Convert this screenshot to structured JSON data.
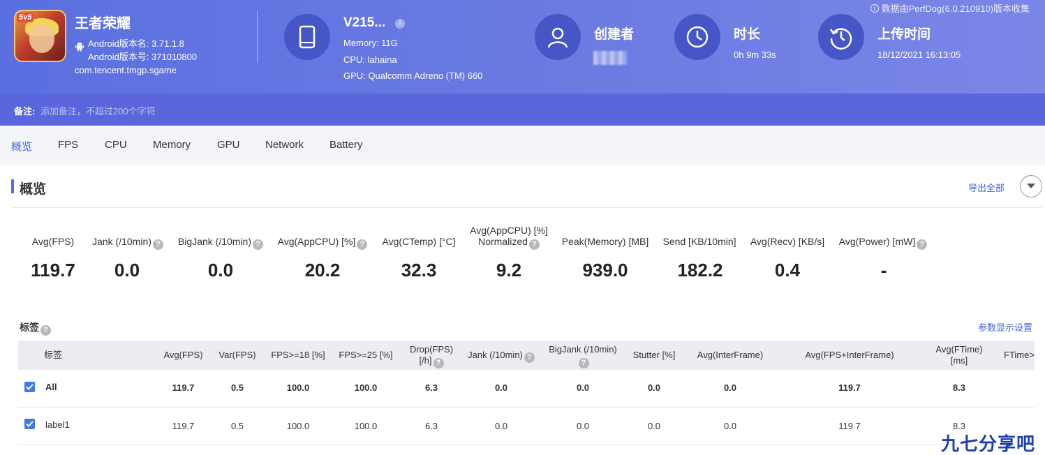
{
  "header": {
    "collect_note": "数据由PerfDog(6.0.210910)版本收集",
    "app": {
      "name": "王者荣耀",
      "icon_badge": "5v5",
      "version_name": "Android版本名: 3.71.1.8",
      "version_code": "Android版本号: 371010800",
      "package": "com.tencent.tmgp.sgame"
    },
    "device": {
      "name": "V215...",
      "memory": "Memory: 11G",
      "cpu": "CPU: lahaina",
      "gpu": "GPU: Qualcomm Adreno (TM) 660",
      "icon": "phone-icon"
    },
    "creator": {
      "title": "创建者",
      "icon": "user-icon"
    },
    "duration": {
      "title": "时长",
      "value": "0h 9m 33s",
      "icon": "clock-icon"
    },
    "upload": {
      "title": "上传时间",
      "value": "18/12/2021 16:13:05",
      "icon": "history-icon"
    }
  },
  "notes": {
    "label": "备注:",
    "placeholder": "添加备注，不超过200个字符"
  },
  "tabs": [
    "概览",
    "FPS",
    "CPU",
    "Memory",
    "GPU",
    "Network",
    "Battery"
  ],
  "section": {
    "title": "概览",
    "export": "导出全部"
  },
  "metrics": [
    {
      "label": "Avg(FPS)",
      "value": "119.7"
    },
    {
      "label": "Jank (/10min)",
      "value": "0.0"
    },
    {
      "label": "BigJank (/10min)",
      "value": "0.0"
    },
    {
      "label": "Avg(AppCPU) [%]",
      "value": "20.2"
    },
    {
      "label": "Avg(CTemp) [°C]",
      "value": "32.3"
    },
    {
      "label_line1": "Avg(AppCPU) [%]",
      "label_line2": "Normalized",
      "value": "9.2"
    },
    {
      "label": "Peak(Memory) [MB]",
      "value": "939.0"
    },
    {
      "label": "Send [KB/10min]",
      "value": "182.2"
    },
    {
      "label": "Avg(Recv) [KB/s]",
      "value": "0.4"
    },
    {
      "label": "Avg(Power) [mW]",
      "value": "-"
    }
  ],
  "tags": {
    "title": "标签",
    "settings": "参数显示设置",
    "columns": {
      "tag": "标签",
      "avg_fps": "Avg(FPS)",
      "var_fps": "Var(FPS)",
      "fps18": "FPS>=18 [%]",
      "fps25": "FPS>=25 [%]",
      "drop1": "Drop(FPS)",
      "drop2": "[/h]",
      "jank": "Jank (/10min)",
      "bigjank": "BigJank (/10min)",
      "stutter": "Stutter [%]",
      "interframe": "Avg(InterFrame)",
      "fps_inter": "Avg(FPS+InterFrame)",
      "ftime1": "Avg(FTime)",
      "ftime2": "[ms]",
      "ftime_more": "FTime>"
    },
    "rows": [
      {
        "name": "All",
        "cells": [
          "119.7",
          "0.5",
          "100.0",
          "100.0",
          "6.3",
          "0.0",
          "0.0",
          "0.0",
          "0.0",
          "119.7",
          "8.3"
        ]
      },
      {
        "name": "label1",
        "cells": [
          "119.7",
          "0.5",
          "100.0",
          "100.0",
          "6.3",
          "0.0",
          "0.0",
          "0.0",
          "0.0",
          "119.7",
          "8.3"
        ]
      }
    ]
  },
  "watermark": "九七分享吧",
  "colors": {
    "header": "#6a7ae2",
    "accent": "#3f63d8",
    "checkbox": "#3f7ae8"
  }
}
